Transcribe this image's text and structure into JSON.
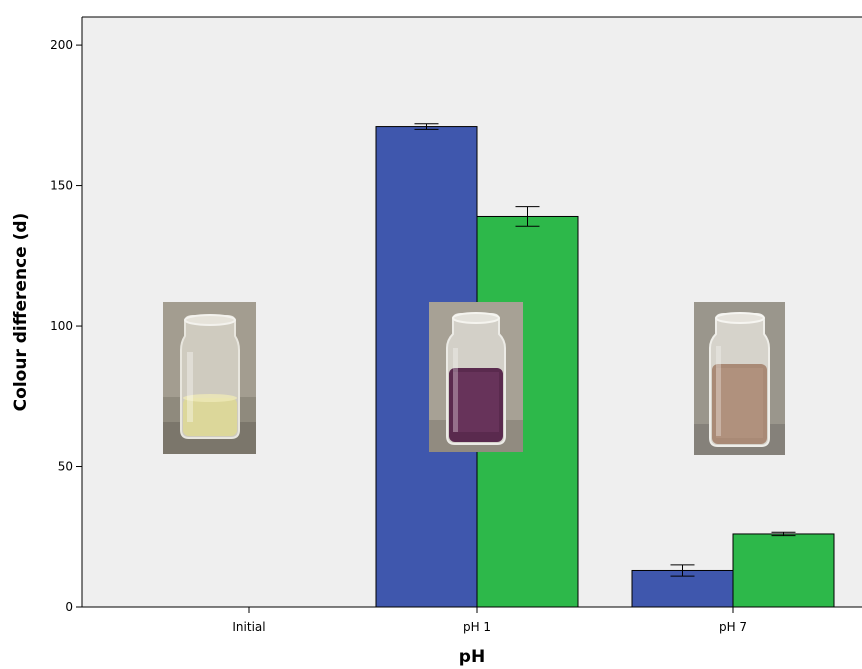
{
  "chart_data": {
    "type": "bar",
    "title": "",
    "xlabel": "pH",
    "ylabel": "Colour difference (d)",
    "categories": [
      "Initial",
      "pH 1",
      "pH 7"
    ],
    "series": [
      {
        "color": "#3f57ad",
        "values": [
          0,
          171,
          13
        ],
        "error": [
          0,
          1,
          2
        ]
      },
      {
        "color": "#2db84a",
        "values": [
          0,
          139,
          26
        ],
        "error": [
          0,
          3.5,
          0.6
        ]
      }
    ],
    "ylim": [
      0,
      210
    ],
    "yticks": [
      0,
      50,
      100,
      150,
      200
    ],
    "grid": false,
    "legend": "none",
    "plot_background": "#efefef",
    "photos": [
      {
        "category": "Initial",
        "liquid_color": "#dcd79a"
      },
      {
        "category": "pH 1",
        "liquid_color": "#5a2a4e"
      },
      {
        "category": "pH 7",
        "liquid_color": "#a98a76"
      }
    ]
  }
}
